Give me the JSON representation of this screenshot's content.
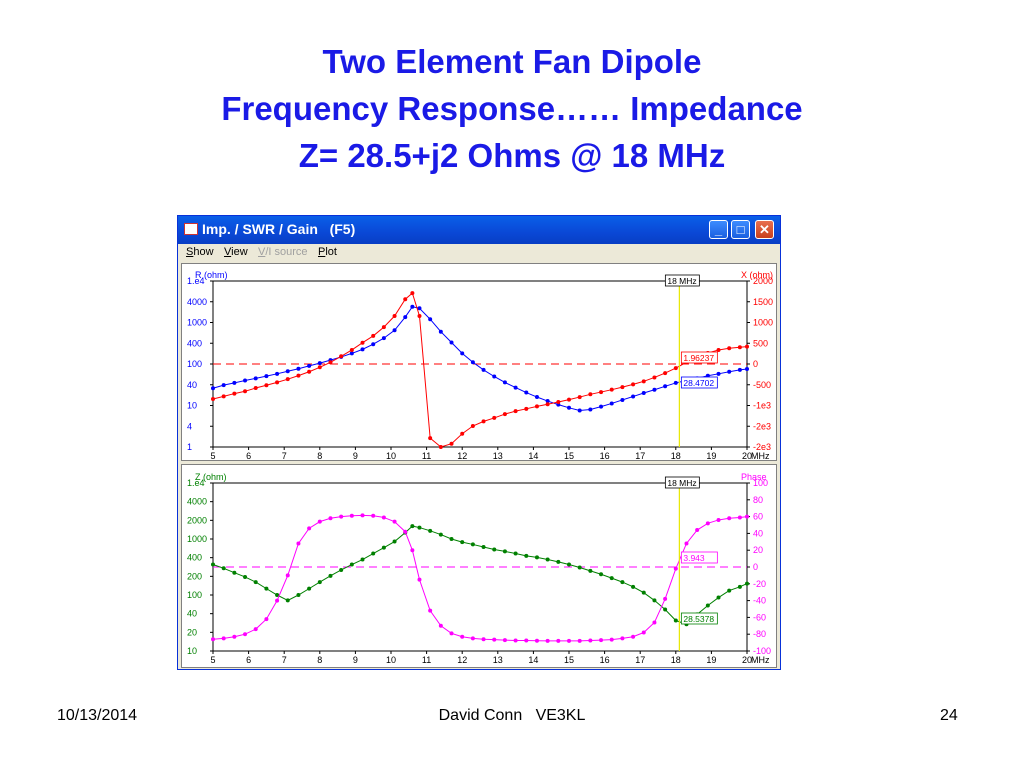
{
  "slide": {
    "title_lines": [
      "Two Element Fan Dipole",
      "Frequency Response…… Impedance",
      "Z= 28.5+j2 Ohms @ 18 MHz"
    ],
    "footer_date": "10/13/2014",
    "footer_author": "David Conn   VE3KL",
    "page_number": "24"
  },
  "window": {
    "title": "Imp. / SWR / Gain   (F5)",
    "buttons": [
      "minimize",
      "maximize",
      "close"
    ],
    "menu": [
      {
        "label": "Show",
        "enabled": true
      },
      {
        "label": "View",
        "enabled": true
      },
      {
        "label": "V/I source",
        "enabled": false
      },
      {
        "label": "Plot",
        "enabled": true
      }
    ]
  },
  "chart_data": [
    {
      "type": "line",
      "xlabel": "MHz",
      "x_ticks": [
        "5",
        "6",
        "7",
        "8",
        "9",
        "10",
        "11",
        "12",
        "13",
        "14",
        "15",
        "16",
        "17",
        "18",
        "19",
        "20"
      ],
      "xlim": [
        5,
        20
      ],
      "left_axis": {
        "label": "R (ohm)",
        "scale": "log",
        "ticks": [
          "1.e4",
          "4000",
          "1000",
          "400",
          "100",
          "40",
          "10",
          "4",
          "1"
        ],
        "color": "#0000ff"
      },
      "right_axis": {
        "label": "X (ohm)",
        "scale": "symlog",
        "ticks": [
          "2000",
          "1500",
          "1000",
          "500",
          "0",
          "-500",
          "-1e3",
          "-2e3",
          "-2e3"
        ],
        "color": "#ff0000"
      },
      "cursor": {
        "x": 18.1,
        "label": "18 MHz"
      },
      "series": [
        {
          "name": "R",
          "axis": "left",
          "color": "#0000ff",
          "x": [
            5,
            5.3,
            5.6,
            5.9,
            6.2,
            6.5,
            6.8,
            7.1,
            7.4,
            7.7,
            8,
            8.3,
            8.6,
            8.9,
            9.2,
            9.5,
            9.8,
            10.1,
            10.4,
            10.6,
            10.8,
            11.1,
            11.4,
            11.7,
            12,
            12.3,
            12.6,
            12.9,
            13.2,
            13.5,
            13.8,
            14.1,
            14.4,
            14.7,
            15,
            15.3,
            15.6,
            15.9,
            16.2,
            16.5,
            16.8,
            17.1,
            17.4,
            17.7,
            18,
            18.3,
            18.6,
            18.9,
            19.2,
            19.5,
            19.8,
            20
          ],
          "y": [
            26,
            31,
            35,
            40,
            45,
            51,
            58,
            67,
            77,
            90,
            105,
            124,
            148,
            180,
            225,
            300,
            420,
            650,
            1350,
            2400,
            2200,
            1200,
            600,
            330,
            180,
            110,
            72,
            50,
            36,
            27,
            20.5,
            16,
            12.8,
            10.5,
            8.8,
            7.6,
            8,
            9.4,
            11.2,
            13.6,
            16.5,
            20,
            24,
            29,
            35,
            40,
            45,
            52,
            58,
            65,
            72,
            76
          ]
        },
        {
          "name": "X",
          "axis": "right",
          "color": "#ff0000",
          "x": [
            5,
            5.3,
            5.6,
            5.9,
            6.2,
            6.5,
            6.8,
            7.1,
            7.4,
            7.7,
            8,
            8.3,
            8.6,
            8.9,
            9.2,
            9.5,
            9.8,
            10.1,
            10.4,
            10.6,
            10.8,
            11.1,
            11.4,
            11.7,
            12,
            12.3,
            12.6,
            12.9,
            13.2,
            13.5,
            13.8,
            14.1,
            14.4,
            14.7,
            15,
            15.3,
            15.6,
            15.9,
            16.2,
            16.5,
            16.8,
            17.1,
            17.4,
            17.7,
            18,
            18.3,
            18.6,
            18.9,
            19.2,
            19.5,
            19.8,
            20
          ],
          "y": [
            -350,
            -310,
            -270,
            -240,
            -200,
            -170,
            -140,
            -110,
            -80,
            -50,
            -20,
            10,
            50,
            100,
            170,
            250,
            380,
            600,
            1100,
            1350,
            600,
            -1500,
            -2000,
            -1800,
            -1300,
            -1000,
            -850,
            -750,
            -650,
            -580,
            -530,
            -480,
            -440,
            -400,
            -360,
            -320,
            -280,
            -250,
            -220,
            -190,
            -160,
            -130,
            -95,
            -60,
            -25,
            10,
            45,
            75,
            100,
            115,
            125,
            130
          ]
        }
      ],
      "cursor_readouts": [
        {
          "value": "1.96237",
          "color": "#ff0000"
        },
        {
          "value": "28.4702",
          "color": "#0000ff"
        }
      ]
    },
    {
      "type": "line",
      "xlabel": "MHz",
      "x_ticks": [
        "5",
        "6",
        "7",
        "8",
        "9",
        "10",
        "11",
        "12",
        "13",
        "14",
        "15",
        "16",
        "17",
        "18",
        "19",
        "20"
      ],
      "xlim": [
        5,
        20
      ],
      "left_axis": {
        "label": "Z (ohm)",
        "scale": "log",
        "ticks": [
          "1.e4",
          "4000",
          "2000",
          "1000",
          "400",
          "200",
          "100",
          "40",
          "20",
          "10"
        ],
        "color": "#008000"
      },
      "right_axis": {
        "label": "Phase",
        "scale": "linear",
        "ylim": [
          -100,
          100
        ],
        "ticks": [
          "100",
          "80",
          "60",
          "40",
          "20",
          "0",
          "-20",
          "-40",
          "-60",
          "-80",
          "-100"
        ],
        "color": "#ff00ff"
      },
      "cursor": {
        "x": 18.1,
        "label": "18 MHz"
      },
      "series": [
        {
          "name": "Z",
          "axis": "left",
          "color": "#008000",
          "x": [
            5,
            5.3,
            5.6,
            5.9,
            6.2,
            6.5,
            6.8,
            7.1,
            7.4,
            7.7,
            8,
            8.3,
            8.6,
            8.9,
            9.2,
            9.5,
            9.8,
            10.1,
            10.4,
            10.6,
            10.8,
            11.1,
            11.4,
            11.7,
            12,
            12.3,
            12.6,
            12.9,
            13.2,
            13.5,
            13.8,
            14.1,
            14.4,
            14.7,
            15,
            15.3,
            15.6,
            15.9,
            16.2,
            16.5,
            16.8,
            17.1,
            17.4,
            17.7,
            18,
            18.3,
            18.6,
            18.9,
            19.2,
            19.5,
            19.8,
            20
          ],
          "y": [
            350,
            300,
            250,
            210,
            170,
            130,
            100,
            80,
            100,
            130,
            170,
            220,
            280,
            350,
            430,
            550,
            700,
            900,
            1300,
            1700,
            1600,
            1400,
            1200,
            1000,
            880,
            800,
            720,
            650,
            600,
            550,
            500,
            470,
            430,
            390,
            350,
            310,
            270,
            235,
            200,
            170,
            140,
            110,
            80,
            55,
            35,
            30,
            45,
            65,
            90,
            120,
            140,
            160
          ]
        },
        {
          "name": "Phase",
          "axis": "right",
          "color": "#ff00ff",
          "x": [
            5,
            5.3,
            5.6,
            5.9,
            6.2,
            6.5,
            6.8,
            7.1,
            7.4,
            7.7,
            8,
            8.3,
            8.6,
            8.9,
            9.2,
            9.5,
            9.8,
            10.1,
            10.4,
            10.6,
            10.8,
            11.1,
            11.4,
            11.7,
            12,
            12.3,
            12.6,
            12.9,
            13.2,
            13.5,
            13.8,
            14.1,
            14.4,
            14.7,
            15,
            15.3,
            15.6,
            15.9,
            16.2,
            16.5,
            16.8,
            17.1,
            17.4,
            17.7,
            18,
            18.3,
            18.6,
            18.9,
            19.2,
            19.5,
            19.8,
            20
          ],
          "y": [
            -86,
            -85,
            -83,
            -80,
            -74,
            -62,
            -40,
            -10,
            28,
            46,
            54,
            58,
            60,
            61,
            61.5,
            61,
            59,
            54,
            42,
            20,
            -15,
            -52,
            -70,
            -79,
            -83,
            -85,
            -86,
            -86.5,
            -87,
            -87.5,
            -87.5,
            -87.8,
            -88,
            -88,
            -88,
            -88,
            -87.5,
            -87,
            -86.5,
            -85,
            -83,
            -78,
            -66,
            -38,
            -2,
            28,
            44,
            52,
            56,
            58,
            59,
            60
          ]
        }
      ],
      "cursor_readouts": [
        {
          "value": "3.943",
          "color": "#ff00ff"
        },
        {
          "value": "28.5378",
          "color": "#008000"
        }
      ]
    }
  ]
}
